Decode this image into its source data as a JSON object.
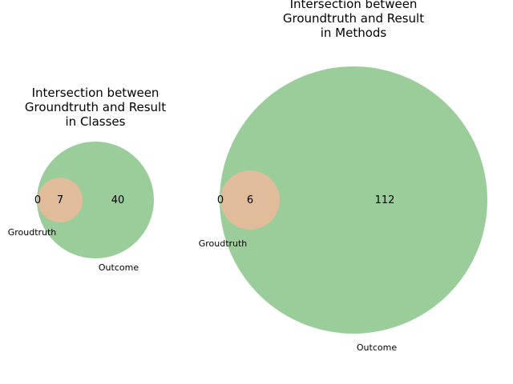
{
  "charts": [
    {
      "title_lines": [
        "Intersection between",
        "Groundtruth and Result",
        "in Classes"
      ],
      "set_labels": {
        "groundtruth": "Groudtruth",
        "outcome": "Outcome"
      },
      "counts": {
        "groundtruth_only": "0",
        "both": "7",
        "outcome_only": "40"
      }
    },
    {
      "title_lines": [
        "Intersection between",
        "Groundtruth and Result",
        "in Methods"
      ],
      "set_labels": {
        "groundtruth": "Groudtruth",
        "outcome": "Outcome"
      },
      "counts": {
        "groundtruth_only": "0",
        "both": "6",
        "outcome_only": "112"
      }
    }
  ],
  "colors": {
    "outcome": "#9bcd9b",
    "intersection": "#e0bc9b",
    "text": "#000000"
  }
}
